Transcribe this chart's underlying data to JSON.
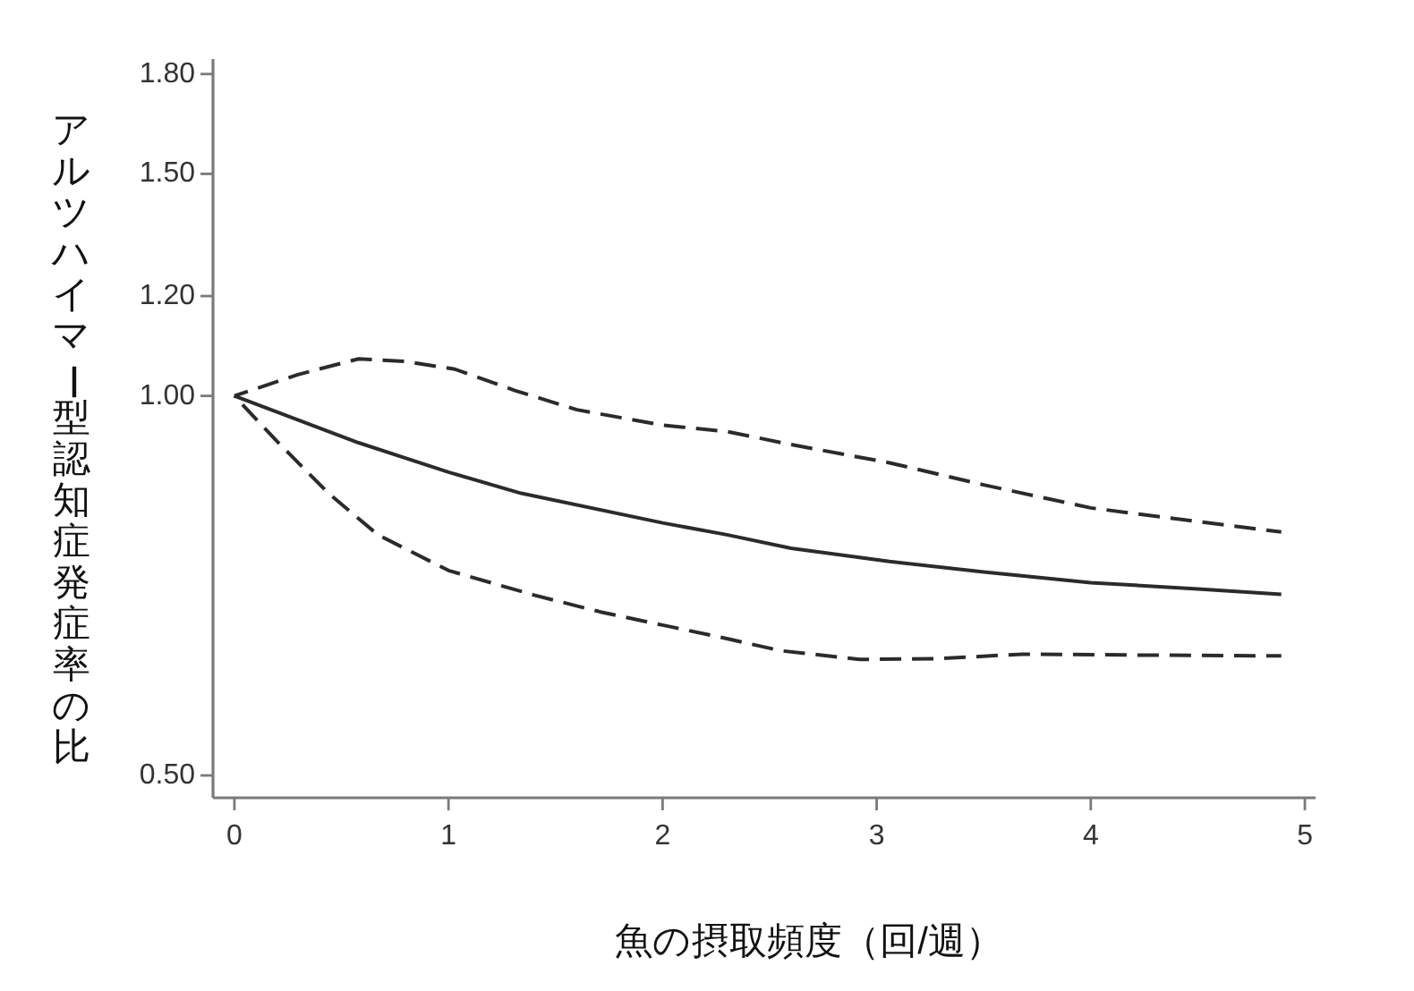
{
  "chart_data": {
    "type": "line",
    "xlabel": "魚の摂取頻度（回/週）",
    "ylabel": "アルツハイマー型認知症発症率の比",
    "log": "y",
    "xlim": [
      -0.1,
      5.05
    ],
    "ylim": [
      0.48,
      1.85
    ],
    "xticks": [
      0,
      1,
      2,
      3,
      4,
      5
    ],
    "yticks": [
      {
        "value": 0.5,
        "label": "0.50"
      },
      {
        "value": 1.0,
        "label": "1.00"
      },
      {
        "value": 1.2,
        "label": "1.20"
      },
      {
        "value": 1.5,
        "label": "1.50"
      },
      {
        "value": 1.8,
        "label": "1.80"
      }
    ],
    "series": [
      {
        "color": "#2b2b2b",
        "line_style": "dashed",
        "x": [
          0,
          0.3,
          0.58,
          0.8,
          1.03,
          1.31,
          1.6,
          2.0,
          2.3,
          2.6,
          3.06,
          3.5,
          4.0,
          4.5,
          4.89
        ],
        "values": [
          1.0,
          1.04,
          1.07,
          1.065,
          1.05,
          1.01,
          0.975,
          0.948,
          0.937,
          0.915,
          0.885,
          0.85,
          0.815,
          0.795,
          0.78
        ]
      },
      {
        "color": "#2b2b2b",
        "line_style": "solid",
        "x": [
          0,
          0.58,
          1.0,
          1.34,
          2.0,
          2.3,
          2.6,
          3.06,
          3.5,
          4.0,
          4.5,
          4.89
        ],
        "values": [
          1.0,
          0.918,
          0.87,
          0.837,
          0.793,
          0.776,
          0.757,
          0.739,
          0.725,
          0.711,
          0.703,
          0.696
        ]
      },
      {
        "color": "#2b2b2b",
        "line_style": "dashed",
        "x": [
          0,
          0.2,
          0.44,
          0.67,
          1.0,
          1.4,
          1.71,
          2.0,
          2.3,
          2.55,
          2.92,
          3.3,
          3.68,
          4.2,
          4.89
        ],
        "values": [
          1.0,
          0.92,
          0.837,
          0.776,
          0.727,
          0.695,
          0.674,
          0.658,
          0.642,
          0.628,
          0.618,
          0.619,
          0.624,
          0.623,
          0.622
        ]
      }
    ]
  }
}
